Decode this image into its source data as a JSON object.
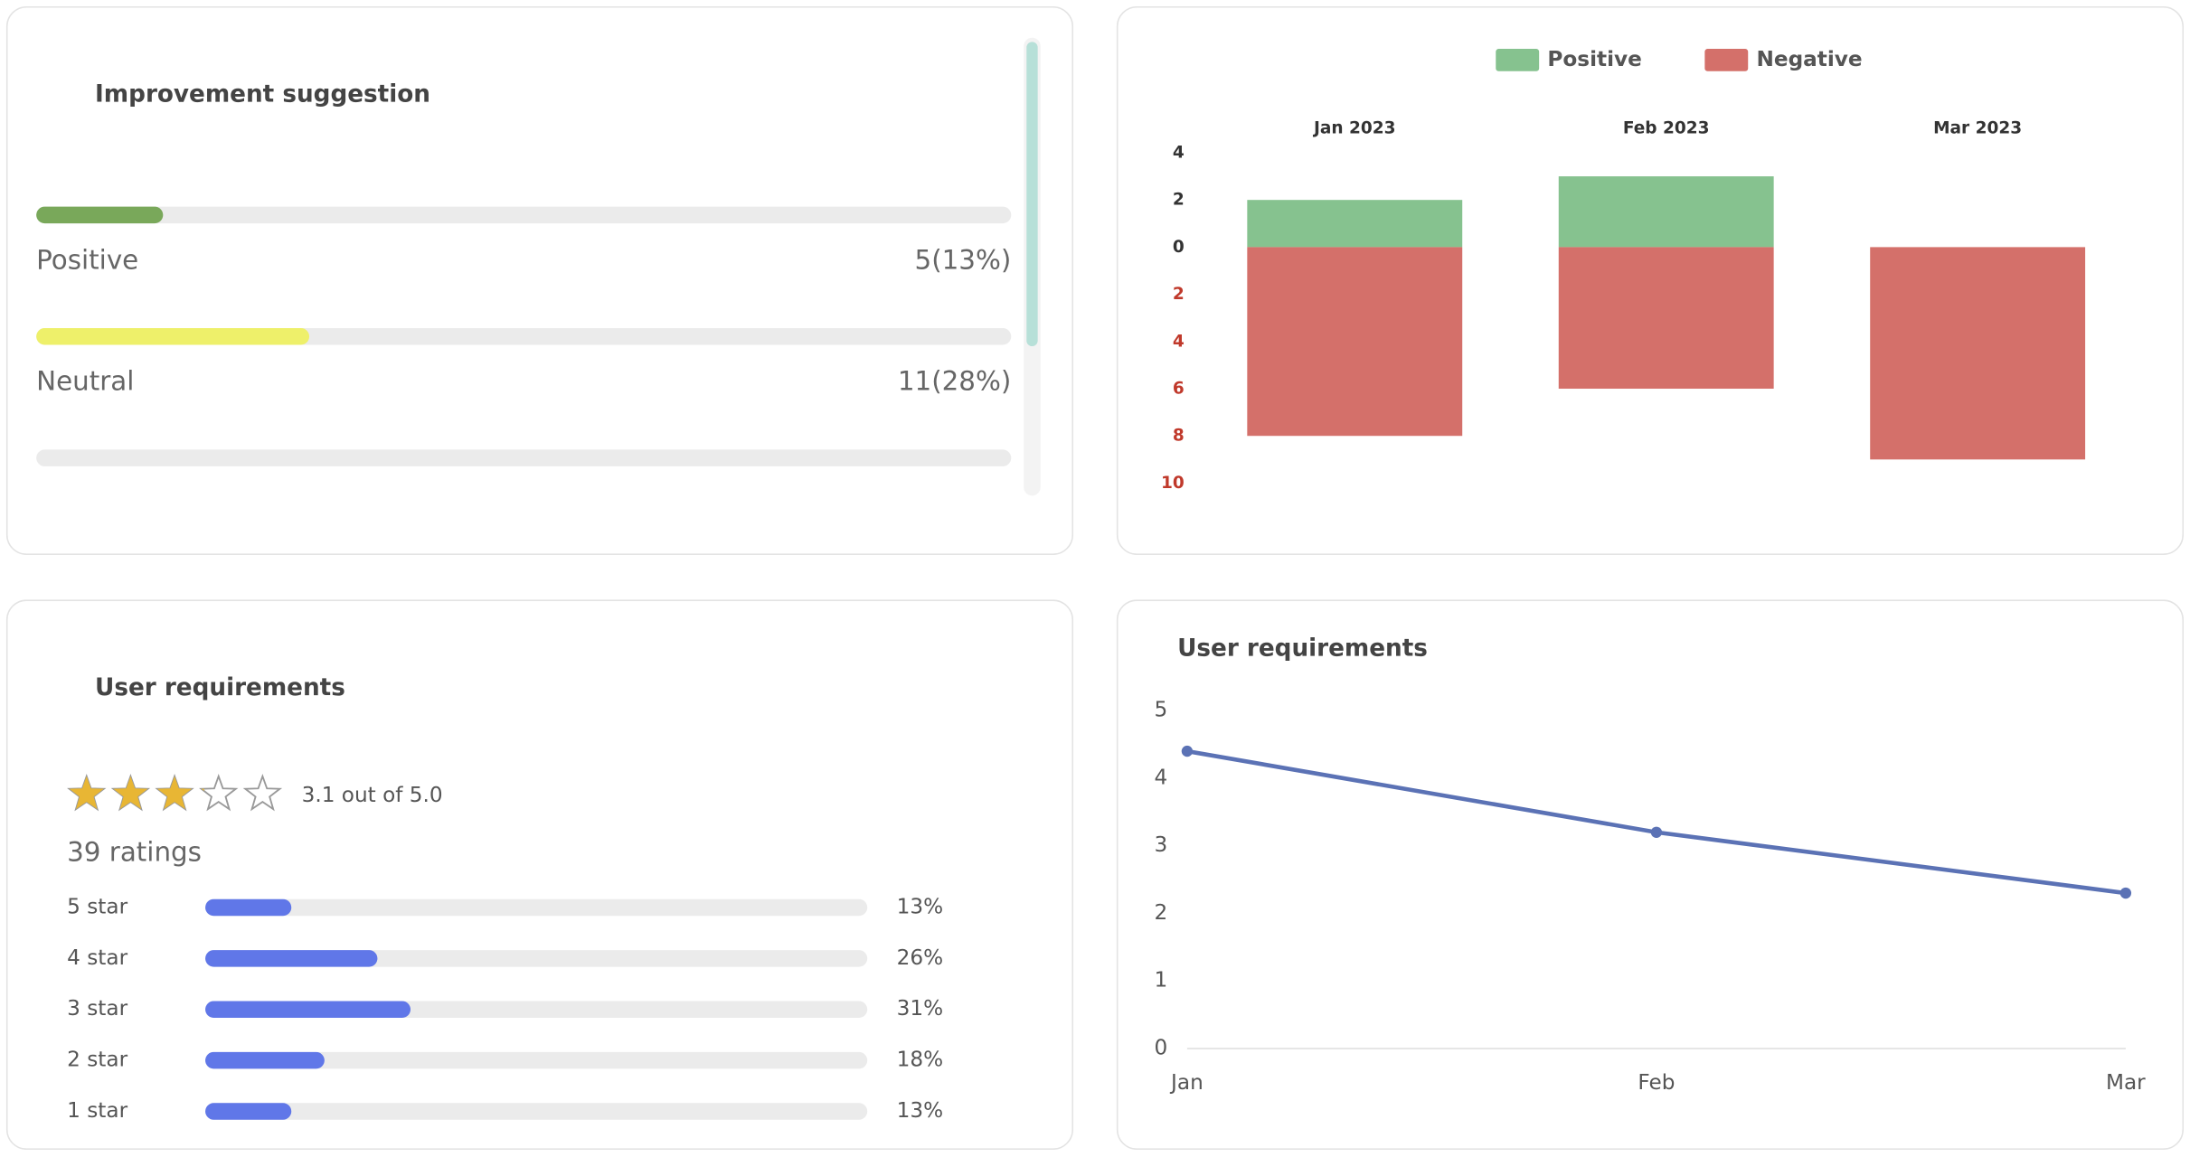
{
  "chart_data": [
    {
      "type": "progress",
      "title": "Improvement suggestion",
      "items": [
        {
          "label": "Positive",
          "value": 5,
          "percent": 13,
          "value_label": "5(13%)",
          "color": "#79a85a"
        },
        {
          "label": "Neutral",
          "value": 11,
          "percent": 28,
          "value_label": "11(28%)",
          "color": "#eef06a"
        }
      ]
    },
    {
      "type": "bar",
      "stacked": true,
      "legend": "top",
      "categories": [
        "Jan 2023",
        "Feb 2023",
        "Mar 2023"
      ],
      "series": [
        {
          "name": "Positive",
          "color": "#86c28f",
          "values": [
            2,
            3,
            0
          ]
        },
        {
          "name": "Negative",
          "color": "#d4706a",
          "values": [
            -8,
            -6,
            -9
          ]
        }
      ],
      "ylim": [
        -10,
        4
      ],
      "yticks": [
        4,
        2,
        0,
        {
          "value": -2,
          "label": "2"
        },
        {
          "value": -4,
          "label": "4"
        },
        {
          "value": -6,
          "label": "6"
        },
        {
          "value": -8,
          "label": "8"
        },
        {
          "value": -10,
          "label": "10"
        }
      ]
    },
    {
      "type": "rating",
      "title": "User requirements",
      "rating": 3.1,
      "rating_label": "3.1 out of 5.0",
      "count_label": "39 ratings",
      "color": "#6077e8",
      "categories": [
        "5 star",
        "4 star",
        "3 star",
        "2 star",
        "1 star"
      ],
      "values": [
        13,
        26,
        31,
        18,
        13
      ],
      "value_labels": [
        "13%",
        "26%",
        "31%",
        "18%",
        "13%"
      ]
    },
    {
      "type": "line",
      "title": "User requirements",
      "categories": [
        "Jan",
        "Feb",
        "Mar"
      ],
      "values": [
        4.4,
        3.2,
        2.3
      ],
      "color": "#5b72b5",
      "ylim": [
        0,
        5
      ],
      "yticks": [
        0,
        1,
        2,
        3,
        4,
        5
      ]
    }
  ]
}
